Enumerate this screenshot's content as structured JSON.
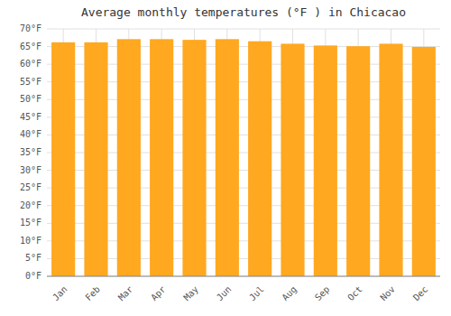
{
  "chart_data": {
    "type": "bar",
    "title": "Average monthly temperatures (°F ) in Chicacao",
    "categories": [
      "Jan",
      "Feb",
      "Mar",
      "Apr",
      "May",
      "Jun",
      "Jul",
      "Aug",
      "Sep",
      "Oct",
      "Nov",
      "Dec"
    ],
    "values": [
      66.2,
      66.2,
      67.1,
      67.1,
      66.9,
      67.1,
      66.5,
      65.8,
      65.3,
      65.1,
      65.8,
      64.9
    ],
    "color": "#FFA820",
    "ylim": [
      0,
      70
    ],
    "yticks": [
      {
        "value": 0,
        "label": "0°F"
      },
      {
        "value": 5,
        "label": "5°F"
      },
      {
        "value": 10,
        "label": "10°F"
      },
      {
        "value": 15,
        "label": "15°F"
      },
      {
        "value": 20,
        "label": "20°F"
      },
      {
        "value": 25,
        "label": "25°F"
      },
      {
        "value": 30,
        "label": "30°F"
      },
      {
        "value": 35,
        "label": "35°F"
      },
      {
        "value": 40,
        "label": "40°F"
      },
      {
        "value": 45,
        "label": "45°F"
      },
      {
        "value": 50,
        "label": "50°F"
      },
      {
        "value": 55,
        "label": "55°F"
      },
      {
        "value": 60,
        "label": "60°F"
      },
      {
        "value": 65,
        "label": "65°F"
      },
      {
        "value": 70,
        "label": "70°F"
      }
    ],
    "grid": true
  }
}
